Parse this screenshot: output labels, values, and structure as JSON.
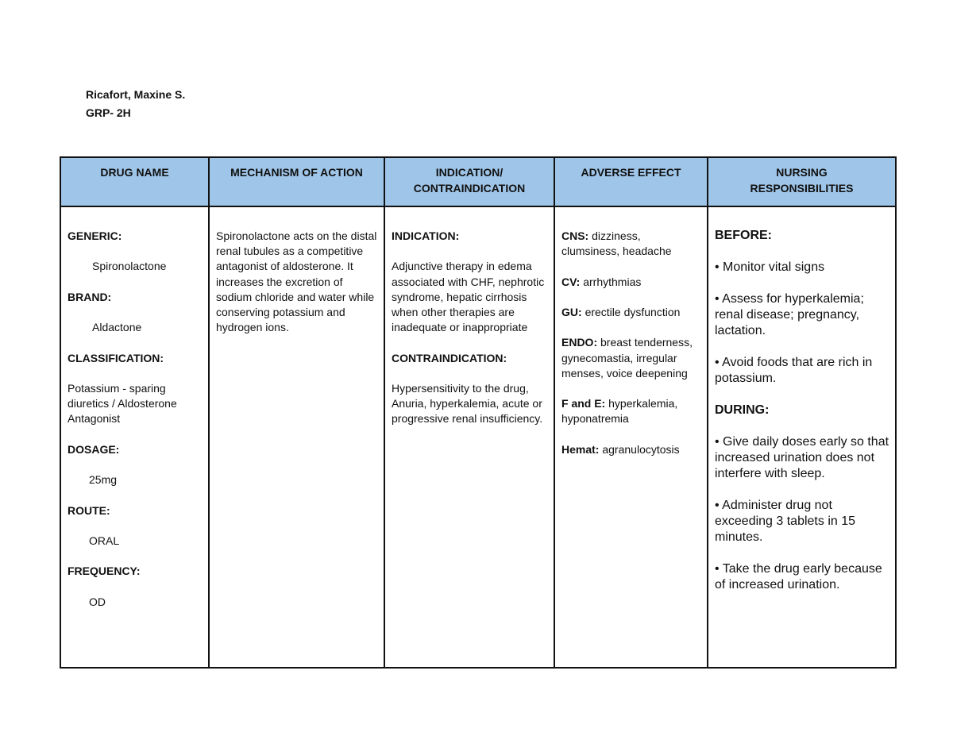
{
  "header": {
    "name": "Ricafort, Maxine S.",
    "group": "GRP- 2H"
  },
  "table": {
    "columns": [
      "DRUG NAME",
      "MECHANISM OF ACTION",
      "INDICATION/ CONTRAINDICATION",
      "ADVERSE EFFECT",
      "NURSING RESPONSIBILITIES"
    ],
    "drug": {
      "generic_label": "GENERIC:",
      "generic": "Spironolactone",
      "brand_label": "BRAND:",
      "brand": "Aldactone",
      "classification_label": "CLASSIFICATION:",
      "classification": "Potassium - sparing diuretics / Aldosterone Antagonist",
      "dosage_label": "DOSAGE:",
      "dosage": "25mg",
      "route_label": "ROUTE:",
      "route": "ORAL",
      "frequency_label": "FREQUENCY:",
      "frequency": "OD"
    },
    "mechanism": "Spironolactone acts on the distal renal tubules as a competitive antagonist of aldosterone. It increases the excretion of sodium chloride and water while conserving potassium and hydrogen ions.",
    "indication": {
      "indication_label": "INDICATION:",
      "indication": "Adjunctive therapy in edema associated with CHF, nephrotic syndrome, hepatic cirrhosis when other therapies are inadequate or inappropriate",
      "contraindication_label": "CONTRAINDICATION:",
      "contraindication": "Hypersensitivity to the drug, Anuria, hyperkalemia, acute or progressive renal insufficiency."
    },
    "adverse": [
      {
        "label": "CNS:",
        "text": "dizziness, clumsiness, headache"
      },
      {
        "label": "CV:",
        "text": "arrhythmias"
      },
      {
        "label": "GU:",
        "text": "erectile dysfunction"
      },
      {
        "label": "ENDO:",
        "text": "breast tenderness, gynecomastia, irregular menses, voice deepening"
      },
      {
        "label": "F and E:",
        "text": "hyperkalemia, hyponatremia"
      },
      {
        "label": "Hemat:",
        "text": "agranulocytosis"
      }
    ],
    "nursing": {
      "before_label": "BEFORE:",
      "before": [
        "• Monitor vital signs",
        "• Assess for hyperkalemia; renal disease; pregnancy, lactation.",
        "• Avoid foods that are rich in potassium."
      ],
      "during_label": "DURING:",
      "during": [
        "• Give daily doses early so that increased urination does not interfere with sleep.",
        "• Administer drug not exceeding 3 tablets in 15 minutes.",
        "• Take the drug early because of increased urination."
      ]
    }
  }
}
